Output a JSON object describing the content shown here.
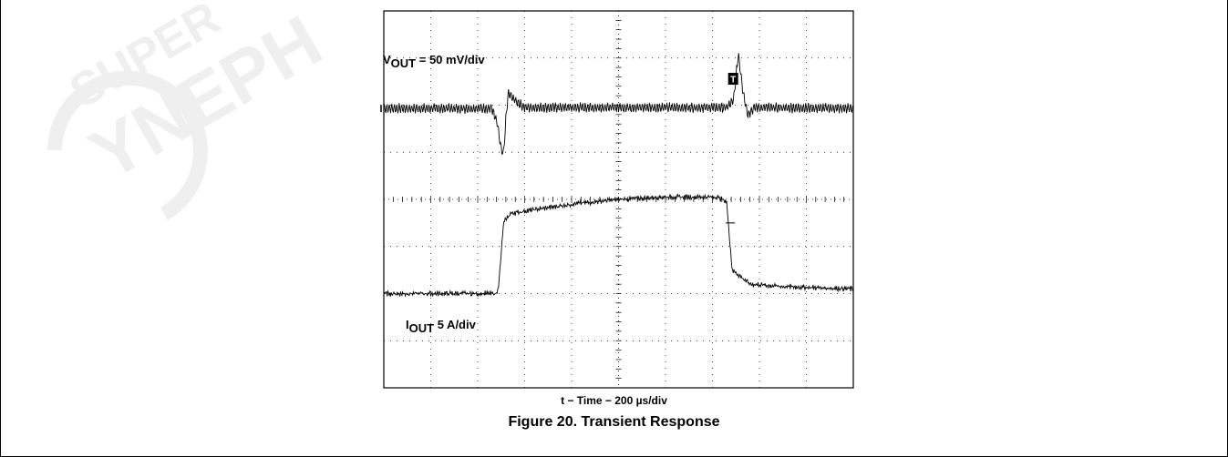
{
  "chart_data": {
    "type": "line",
    "title": "Figure 20. Transient Response",
    "xlabel": "t − Time − 200 µs/div",
    "grid": true,
    "divisions": {
      "x": 10,
      "y": 8
    },
    "trigger_marker": "T",
    "series": [
      {
        "name_main": "V",
        "name_sub": "OUT",
        "name_suffix": " = 50 mV/div",
        "unit": "div",
        "x": [
          0.0,
          2.3,
          2.42,
          2.5,
          2.55,
          2.6,
          2.65,
          2.8,
          3.0,
          7.3,
          7.45,
          7.55,
          7.65,
          7.75,
          7.9,
          10.0
        ],
        "values": [
          5.93,
          5.93,
          5.6,
          5.05,
          4.95,
          5.7,
          6.25,
          6.1,
          5.95,
          5.95,
          6.1,
          7.1,
          6.3,
          5.8,
          5.95,
          5.93
        ]
      },
      {
        "name_main": "I",
        "name_sub": "OUT",
        "name_suffix": " 5 A/div",
        "unit": "div",
        "x": [
          0.0,
          2.4,
          2.45,
          2.55,
          2.7,
          3.0,
          4.0,
          5.0,
          6.0,
          7.1,
          7.3,
          7.42,
          7.55,
          7.8,
          8.5,
          10.0
        ],
        "values": [
          2.0,
          2.0,
          2.2,
          3.5,
          3.7,
          3.75,
          3.9,
          4.0,
          4.05,
          4.05,
          3.95,
          2.5,
          2.4,
          2.2,
          2.15,
          2.1
        ]
      }
    ]
  },
  "watermark": [
    "SUPER",
    "YNEPH"
  ]
}
